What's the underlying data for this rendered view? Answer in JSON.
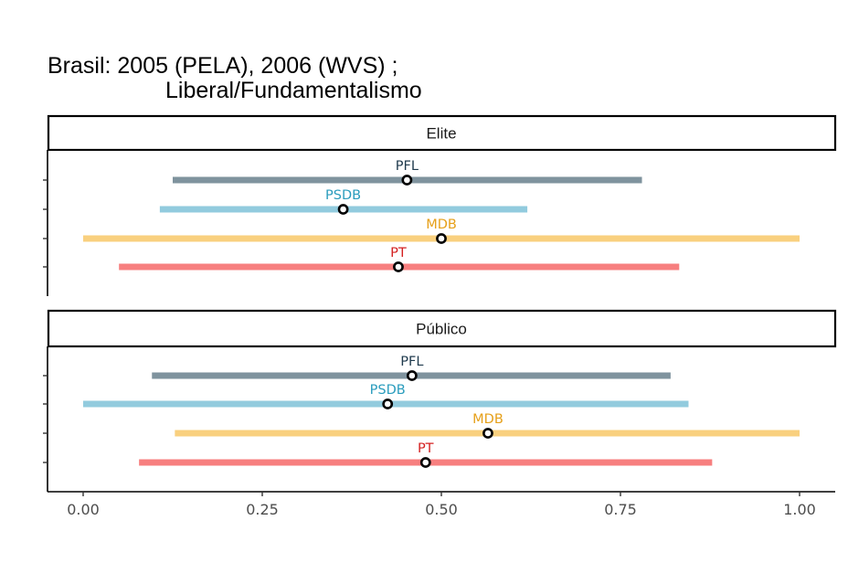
{
  "chart_data": {
    "type": "dot-range",
    "title_line1": "Brasil: 2005 (PELA), 2006 (WVS) ;",
    "title_line2": "Liberal/Fundamentalismo",
    "xlim": [
      0,
      1
    ],
    "x_ticks": [
      "0.00",
      "0.25",
      "0.50",
      "0.75",
      "1.00"
    ],
    "x_tick_values": [
      0,
      0.25,
      0.5,
      0.75,
      1.0
    ],
    "xlabel": "",
    "ylabel": "",
    "party_colors": {
      "PFL": {
        "line": "#7f939e",
        "text": "#1f3a4d"
      },
      "PSDB": {
        "line": "#92cbde",
        "text": "#2a9cbd"
      },
      "MDB": {
        "line": "#f9d07f",
        "text": "#e6a01a"
      },
      "PT": {
        "line": "#f77f7f",
        "text": "#d42121"
      }
    },
    "panels": [
      {
        "name": "Elite",
        "rows": [
          {
            "party": "PFL",
            "low": 0.125,
            "high": 0.78,
            "point": 0.452
          },
          {
            "party": "PSDB",
            "low": 0.107,
            "high": 0.62,
            "point": 0.363
          },
          {
            "party": "MDB",
            "low": 0.0,
            "high": 1.0,
            "point": 0.5
          },
          {
            "party": "PT",
            "low": 0.05,
            "high": 0.832,
            "point": 0.44
          }
        ]
      },
      {
        "name": "Público",
        "rows": [
          {
            "party": "PFL",
            "low": 0.096,
            "high": 0.82,
            "point": 0.459
          },
          {
            "party": "PSDB",
            "low": 0.0,
            "high": 0.845,
            "point": 0.425
          },
          {
            "party": "MDB",
            "low": 0.128,
            "high": 1.0,
            "point": 0.565
          },
          {
            "party": "PT",
            "low": 0.078,
            "high": 0.878,
            "point": 0.478
          }
        ]
      }
    ]
  }
}
